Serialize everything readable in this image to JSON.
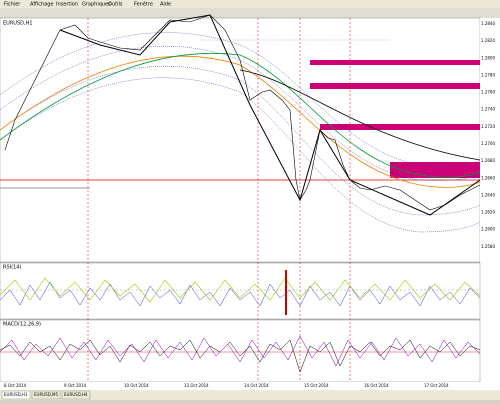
{
  "menu": [
    "Fichier",
    "Affichage",
    "Insertion",
    "Graphiques",
    "Outils",
    "Fenêtre",
    "Aide"
  ],
  "chart": {
    "header": "EURUSD,H1",
    "price_labels": [
      "1.2840",
      "1.2820",
      "1.2800",
      "1.2780",
      "1.2760",
      "1.2740",
      "1.2720",
      "1.2700",
      "1.2680",
      "1.2660",
      "1.2640",
      "1.2620",
      "1.2600",
      "1.2580"
    ]
  },
  "panels": [
    {
      "label": "RSI(14)"
    },
    {
      "label": "MACD(12,26,9)"
    }
  ],
  "time_labels": [
    "8 Oct 2014",
    "9 Oct 2014",
    "10 Oct 2014",
    "13 Oct 2014",
    "14 Oct 2014",
    "15 Oct 2014",
    "16 Oct 2014",
    "17 Oct 2014"
  ],
  "tabs": [
    "EURUSD,H1",
    "EURUSD,M5",
    "EURUSD,H4"
  ]
}
